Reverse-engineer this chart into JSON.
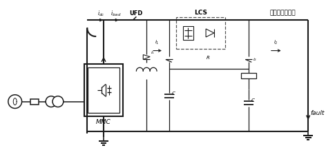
{
  "bg_color": "#ffffff",
  "line_color": "#1a1a1a",
  "top_label": "通态低搏耗支路",
  "lcs_label": "LCS",
  "ufd_label": "UFD",
  "mmc_label": "MMC",
  "fault_label": "fault",
  "idc_label": "i_{dc}",
  "iload_label": "i_{load}",
  "figw": 4.72,
  "figh": 2.34,
  "dpi": 100
}
